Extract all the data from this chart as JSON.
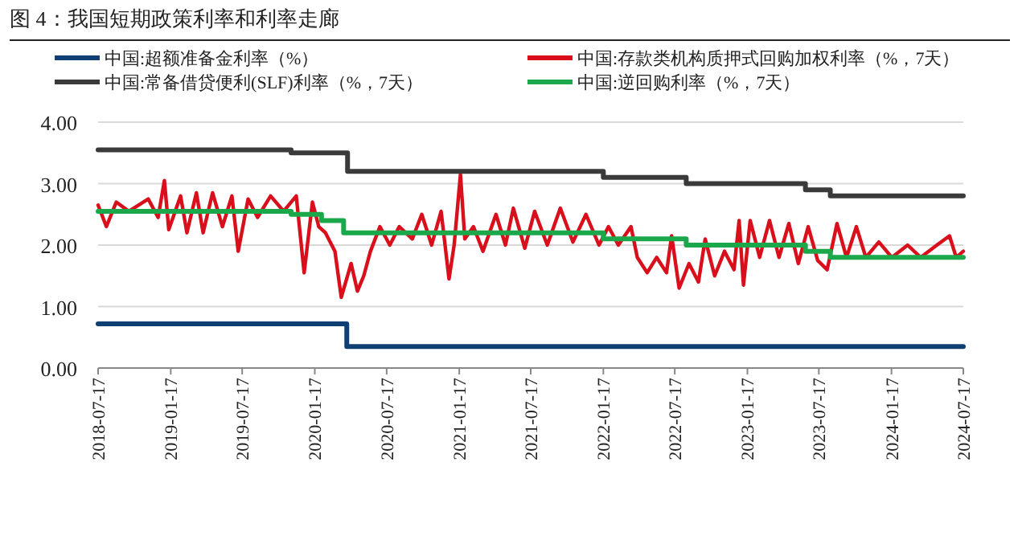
{
  "chart_data": {
    "type": "line",
    "title": "图 4：我国短期政策利率和利率走廊",
    "xlim": [
      "2018-07-17",
      "2024-07-17"
    ],
    "xticks": [
      "2018-07-17",
      "2019-01-17",
      "2019-07-17",
      "2020-01-17",
      "2020-07-17",
      "2021-01-17",
      "2021-07-17",
      "2022-01-17",
      "2022-07-17",
      "2023-01-17",
      "2023-07-17",
      "2024-01-17",
      "2024-07-17"
    ],
    "ylim": [
      0,
      4
    ],
    "yticks": [
      {
        "value": 0,
        "label": "0.00"
      },
      {
        "value": 1,
        "label": "1.00"
      },
      {
        "value": 2,
        "label": "2.00"
      },
      {
        "value": 3,
        "label": "3.00"
      },
      {
        "value": 4,
        "label": "4.00"
      }
    ],
    "grid": "y",
    "legend": "top",
    "line_style": "solid",
    "marker": "none",
    "series": [
      {
        "name": "中国:超额准备金利率（%）",
        "type": "step",
        "color": "#0f3f73",
        "x": [
          "2018-07-17",
          "2020-04-07",
          "2024-07-17"
        ],
        "values": [
          0.72,
          0.35,
          0.35
        ]
      },
      {
        "name": "中国:存款类机构质押式回购加权利率（%，7天）",
        "type": "line",
        "color": "#d9101c",
        "x": [
          "2018-07-17",
          "2018-08-07",
          "2018-09-01",
          "2018-10-03",
          "2018-11-21",
          "2018-12-16",
          "2019-01-01",
          "2019-01-12",
          "2019-02-11",
          "2019-02-27",
          "2019-03-23",
          "2019-04-09",
          "2019-05-03",
          "2019-05-28",
          "2019-06-21",
          "2019-07-07",
          "2019-08-01",
          "2019-08-25",
          "2019-09-27",
          "2019-10-30",
          "2019-12-01",
          "2019-12-21",
          "2020-01-11",
          "2020-01-27",
          "2020-02-13",
          "2020-03-08",
          "2020-03-24",
          "2020-04-18",
          "2020-05-04",
          "2020-05-20",
          "2020-06-06",
          "2020-06-30",
          "2020-07-25",
          "2020-08-18",
          "2020-09-20",
          "2020-10-14",
          "2020-11-08",
          "2020-12-02",
          "2020-12-22",
          "2021-01-04",
          "2021-01-20",
          "2021-01-31",
          "2021-02-22",
          "2021-03-18",
          "2021-04-20",
          "2021-05-14",
          "2021-06-03",
          "2021-07-02",
          "2021-07-27",
          "2021-08-28",
          "2021-09-30",
          "2021-11-01",
          "2021-12-04",
          "2022-01-06",
          "2022-01-30",
          "2022-02-24",
          "2022-03-28",
          "2022-04-13",
          "2022-05-08",
          "2022-06-01",
          "2022-06-26",
          "2022-07-09",
          "2022-07-28",
          "2022-08-22",
          "2022-09-15",
          "2022-10-02",
          "2022-10-26",
          "2022-11-20",
          "2022-12-14",
          "2022-12-27",
          "2023-01-07",
          "2023-01-24",
          "2023-02-17",
          "2023-03-14",
          "2023-04-07",
          "2023-05-02",
          "2023-05-26",
          "2023-06-20",
          "2023-07-14",
          "2023-08-07",
          "2023-09-01",
          "2023-09-25",
          "2023-10-20",
          "2023-11-13",
          "2023-12-16",
          "2024-01-18",
          "2024-02-27",
          "2024-03-31",
          "2024-05-11",
          "2024-06-12",
          "2024-06-29",
          "2024-07-17"
        ],
        "values": [
          2.65,
          2.3,
          2.7,
          2.55,
          2.75,
          2.45,
          3.05,
          2.25,
          2.8,
          2.2,
          2.85,
          2.2,
          2.85,
          2.3,
          2.8,
          1.9,
          2.75,
          2.45,
          2.8,
          2.55,
          2.8,
          1.55,
          2.7,
          2.3,
          2.2,
          1.9,
          1.15,
          1.7,
          1.25,
          1.5,
          1.9,
          2.3,
          2.0,
          2.3,
          2.1,
          2.5,
          2.0,
          2.55,
          1.45,
          2.0,
          3.15,
          2.1,
          2.3,
          1.9,
          2.5,
          2.0,
          2.6,
          1.95,
          2.55,
          2.0,
          2.6,
          2.05,
          2.5,
          2.0,
          2.3,
          2.0,
          2.3,
          1.8,
          1.55,
          1.8,
          1.55,
          2.15,
          1.3,
          1.7,
          1.4,
          2.1,
          1.5,
          1.9,
          1.6,
          2.4,
          1.35,
          2.4,
          1.8,
          2.4,
          1.8,
          2.35,
          1.7,
          2.3,
          1.75,
          1.6,
          2.35,
          1.8,
          2.3,
          1.8,
          2.05,
          1.8,
          2.0,
          1.8,
          2.0,
          2.15,
          1.8,
          1.9
        ]
      },
      {
        "name": "中国:常备借贷便利(SLF)利率（%，7天）",
        "type": "step",
        "color": "#3a3a3a",
        "x": [
          "2018-07-17",
          "2019-11-18",
          "2020-04-09",
          "2022-01-17",
          "2022-08-15",
          "2023-06-13",
          "2023-08-15",
          "2024-07-17"
        ],
        "values": [
          3.55,
          3.5,
          3.2,
          3.1,
          3.0,
          2.9,
          2.8,
          2.8
        ]
      },
      {
        "name": "中国:逆回购利率（%，7天）",
        "type": "step",
        "color": "#1aa84a",
        "x": [
          "2018-07-17",
          "2019-11-18",
          "2020-02-03",
          "2020-03-30",
          "2022-01-17",
          "2022-08-15",
          "2023-06-13",
          "2023-08-15",
          "2024-07-17"
        ],
        "values": [
          2.55,
          2.5,
          2.4,
          2.2,
          2.1,
          2.0,
          1.9,
          1.8,
          1.8
        ]
      }
    ]
  }
}
